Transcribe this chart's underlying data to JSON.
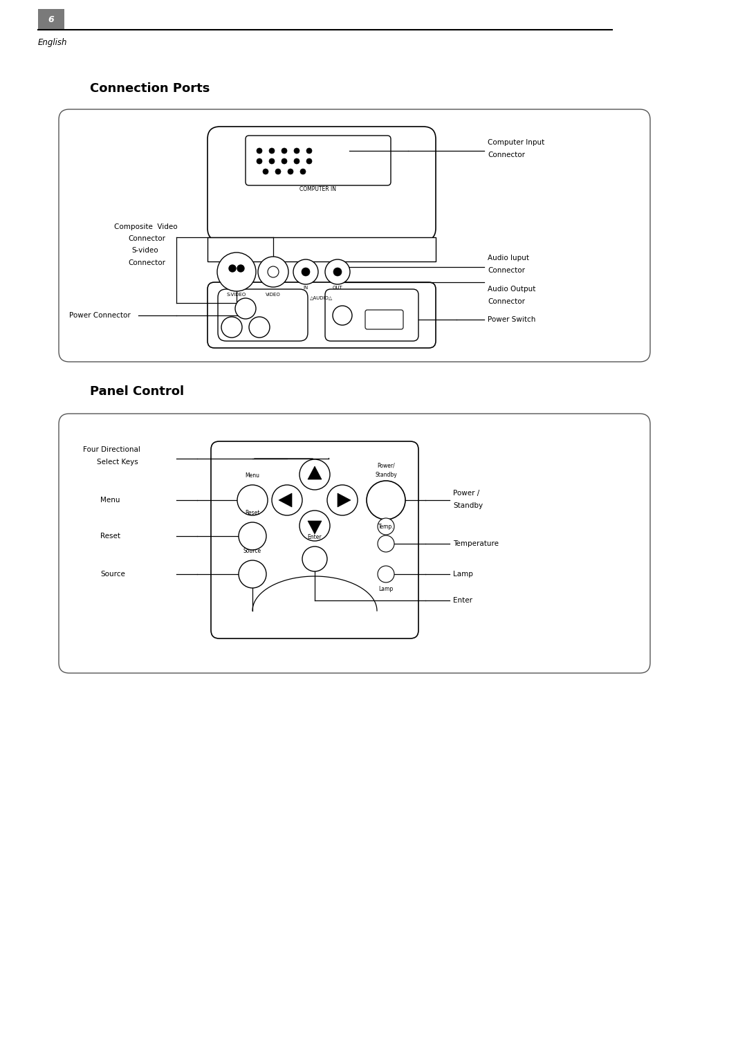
{
  "page_num": "6",
  "page_label": "English",
  "section1_title": "Connection Ports",
  "section2_title": "Panel Control",
  "bg_color": "#ffffff",
  "box_color": "#000000",
  "text_color": "#000000",
  "gray_color": "#6b6b6b",
  "light_gray": "#cccccc"
}
